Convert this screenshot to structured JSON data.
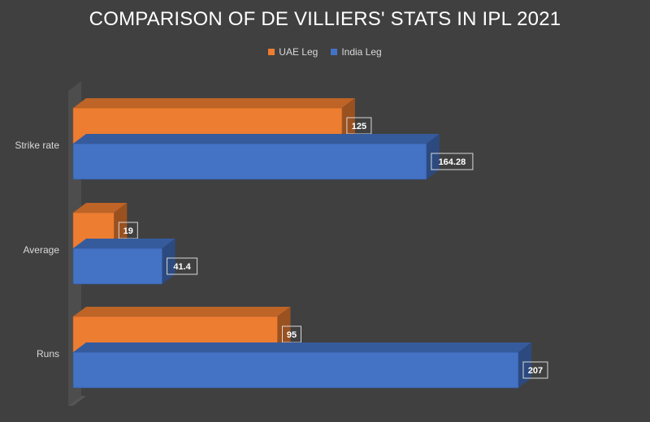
{
  "chart_data": {
    "type": "bar",
    "orientation": "horizontal",
    "title": "COMPARISON OF DE VILLIERS' STATS IN IPL 2021",
    "categories": [
      "Strike rate",
      "Average",
      "Runs"
    ],
    "series": [
      {
        "name": "UAE Leg",
        "values": [
          125,
          19,
          95
        ],
        "color": "#ed7d31"
      },
      {
        "name": "India Leg",
        "values": [
          164.28,
          41.4,
          207
        ],
        "color": "#4472c4"
      }
    ],
    "xlim": [
      0,
      207
    ],
    "legend_position": "top",
    "grid": false,
    "three_d": true
  },
  "colors": {
    "background": "#404040",
    "text": "#d9d9d9",
    "label_border": "#d9d9d9"
  }
}
